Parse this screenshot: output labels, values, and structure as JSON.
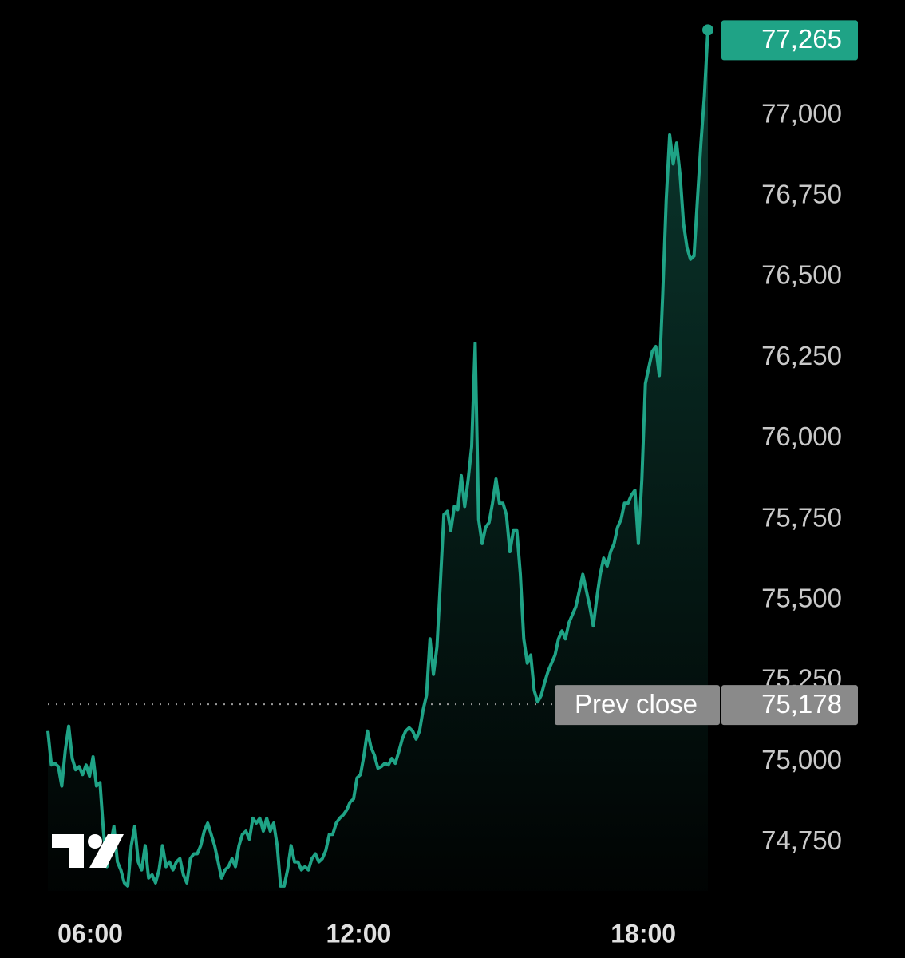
{
  "chart_data": {
    "type": "line",
    "color": "#1fa386",
    "xlim": [
      5.45,
      19.36
    ],
    "xticks": [
      {
        "value": 6,
        "label": "06:00"
      },
      {
        "value": 12,
        "label": "12:00"
      },
      {
        "value": 18,
        "label": "18:00"
      }
    ],
    "ylim": [
      74600,
      77350
    ],
    "yticks": [
      {
        "value": 74750,
        "label": "74,750"
      },
      {
        "value": 75000,
        "label": "75,000"
      },
      {
        "value": 75250,
        "label": "75,250"
      },
      {
        "value": 75500,
        "label": "75,500"
      },
      {
        "value": 75750,
        "label": "75,750"
      },
      {
        "value": 76000,
        "label": "76,000"
      },
      {
        "value": 76250,
        "label": "76,250"
      },
      {
        "value": 76500,
        "label": "76,500"
      },
      {
        "value": 76750,
        "label": "76,750"
      },
      {
        "value": 77000,
        "label": "77,000"
      }
    ],
    "reference_lines": [
      {
        "name": "Prev close",
        "value": 75178,
        "label": "75,178"
      }
    ],
    "annotations": [
      {
        "value": 77265,
        "label": "77,265"
      }
    ],
    "values": [
      75095,
      74990,
      74995,
      74985,
      74925,
      75035,
      75110,
      75010,
      74975,
      74985,
      74960,
      74990,
      74955,
      75015,
      74925,
      74935,
      74785,
      74675,
      74740,
      74800,
      74690,
      74665,
      74625,
      74615,
      74740,
      74800,
      74690,
      74665,
      74740,
      74640,
      74650,
      74625,
      74665,
      74740,
      74675,
      74690,
      74665,
      74690,
      74700,
      74650,
      74625,
      74700,
      74715,
      74715,
      74740,
      74785,
      74810,
      74775,
      74740,
      74690,
      74640,
      74665,
      74675,
      74700,
      74675,
      74740,
      74775,
      74785,
      74760,
      74825,
      74810,
      74825,
      74785,
      74825,
      74785,
      74810,
      74740,
      74615,
      74615,
      74665,
      74740,
      74690,
      74690,
      74665,
      74675,
      74665,
      74700,
      74715,
      74690,
      74700,
      74725,
      74775,
      74775,
      74810,
      74825,
      74835,
      74850,
      74875,
      74885,
      74950,
      74960,
      75020,
      75095,
      75045,
      75020,
      74980,
      74985,
      74995,
      74990,
      75010,
      74995,
      75030,
      75070,
      75095,
      75105,
      75095,
      75070,
      75095,
      75160,
      75205,
      75380,
      75270,
      75355,
      75555,
      75765,
      75775,
      75715,
      75790,
      75780,
      75885,
      75790,
      75875,
      75975,
      76295,
      75750,
      75675,
      75725,
      75740,
      75800,
      75875,
      75800,
      75800,
      75765,
      75650,
      75715,
      75715,
      75580,
      75380,
      75305,
      75330,
      75220,
      75185,
      75205,
      75245,
      75280,
      75305,
      75330,
      75380,
      75405,
      75380,
      75430,
      75455,
      75480,
      75530,
      75580,
      75530,
      75480,
      75420,
      75505,
      75580,
      75630,
      75605,
      75650,
      75675,
      75725,
      75750,
      75800,
      75800,
      75825,
      75840,
      75675,
      75875,
      76170,
      76220,
      76270,
      76285,
      76195,
      76445,
      76740,
      76940,
      76850,
      76915,
      76815,
      76665,
      76590,
      76555,
      76565,
      76740,
      76915,
      77060,
      77265
    ]
  }
}
